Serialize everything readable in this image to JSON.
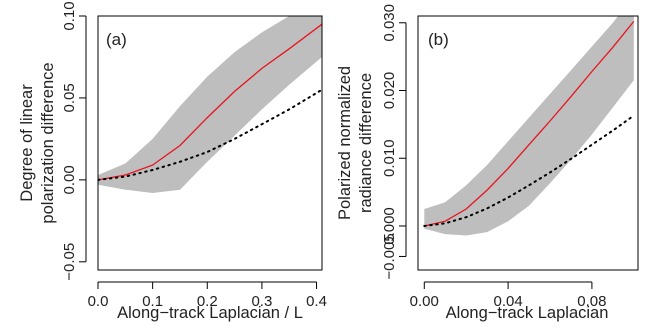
{
  "chart_data": [
    {
      "type": "line",
      "panel_label": "(a)",
      "xlabel": "Along−track Laplacian / L",
      "ylabel": [
        "Degree of linear",
        "polarization difference"
      ],
      "xlim": [
        0.0,
        0.41
      ],
      "ylim": [
        -0.055,
        0.1
      ],
      "x_ticks": [
        0.0,
        0.1,
        0.2,
        0.3,
        0.4
      ],
      "x_tick_labels": [
        "0.0",
        "0.1",
        "0.2",
        "0.3",
        "0.4"
      ],
      "y_ticks": [
        -0.05,
        0.0,
        0.05,
        0.1
      ],
      "y_tick_labels": [
        "−0.05",
        "0.00",
        "0.05",
        "0.10"
      ],
      "grid": false,
      "series": [
        {
          "role": "band",
          "color": "#bebebe",
          "x": [
            0.0,
            0.05,
            0.1,
            0.15,
            0.2,
            0.25,
            0.3,
            0.35,
            0.41
          ],
          "upper": [
            0.003,
            0.01,
            0.025,
            0.045,
            0.063,
            0.078,
            0.09,
            0.1,
            0.112
          ],
          "lower": [
            -0.003,
            -0.006,
            -0.008,
            -0.006,
            0.011,
            0.027,
            0.043,
            0.058,
            0.075
          ]
        },
        {
          "role": "line",
          "style": "solid",
          "color": "#e8141e",
          "x": [
            0.0,
            0.05,
            0.1,
            0.15,
            0.2,
            0.25,
            0.3,
            0.35,
            0.41
          ],
          "y": [
            0.0,
            0.003,
            0.009,
            0.021,
            0.038,
            0.054,
            0.068,
            0.08,
            0.095
          ]
        },
        {
          "role": "line",
          "style": "dotted",
          "color": "#000000",
          "x": [
            0.0,
            0.05,
            0.1,
            0.15,
            0.2,
            0.25,
            0.3,
            0.35,
            0.41
          ],
          "y": [
            0.0,
            0.002,
            0.006,
            0.011,
            0.017,
            0.025,
            0.034,
            0.043,
            0.055
          ]
        }
      ]
    },
    {
      "type": "line",
      "panel_label": "(b)",
      "xlabel": "Along−track Laplacian",
      "ylabel": [
        "Polarized normalized",
        "radiance difference"
      ],
      "xlim": [
        -0.003,
        0.102
      ],
      "ylim": [
        -0.0065,
        0.031
      ],
      "x_ticks": [
        0.0,
        0.04,
        0.08
      ],
      "x_tick_labels": [
        "0.00",
        "0.04",
        "0.08"
      ],
      "y_ticks": [
        0.0,
        0.01,
        0.02,
        0.03
      ],
      "y_tick_labels": [
        "0.000",
        "0.010",
        "0.020",
        "0.030"
      ],
      "y_tick_label_overrides": [
        {
          "value": -0.0045,
          "label": "−0.005"
        }
      ],
      "grid": false,
      "series": [
        {
          "role": "band",
          "color": "#bebebe",
          "x": [
            0.0,
            0.01,
            0.02,
            0.03,
            0.04,
            0.05,
            0.06,
            0.07,
            0.08,
            0.09,
            0.1
          ],
          "upper": [
            0.0025,
            0.0035,
            0.006,
            0.009,
            0.0125,
            0.016,
            0.0195,
            0.023,
            0.0265,
            0.03,
            0.034
          ],
          "lower": [
            -0.0004,
            -0.0012,
            -0.0014,
            -0.0009,
            0.0007,
            0.003,
            0.0063,
            0.0098,
            0.0135,
            0.0175,
            0.0215
          ]
        },
        {
          "role": "line",
          "style": "solid",
          "color": "#e8141e",
          "x": [
            0.0,
            0.01,
            0.02,
            0.03,
            0.04,
            0.05,
            0.06,
            0.07,
            0.08,
            0.09,
            0.1
          ],
          "y": [
            0.0,
            0.0007,
            0.0025,
            0.0053,
            0.0085,
            0.012,
            0.0155,
            0.0191,
            0.0228,
            0.0264,
            0.0302
          ]
        },
        {
          "role": "line",
          "style": "dotted",
          "color": "#000000",
          "x": [
            0.0,
            0.01,
            0.02,
            0.03,
            0.04,
            0.05,
            0.06,
            0.07,
            0.08,
            0.09,
            0.1
          ],
          "y": [
            0.0,
            0.0004,
            0.0013,
            0.0026,
            0.0042,
            0.006,
            0.0079,
            0.0099,
            0.012,
            0.0141,
            0.0163
          ]
        }
      ]
    }
  ]
}
